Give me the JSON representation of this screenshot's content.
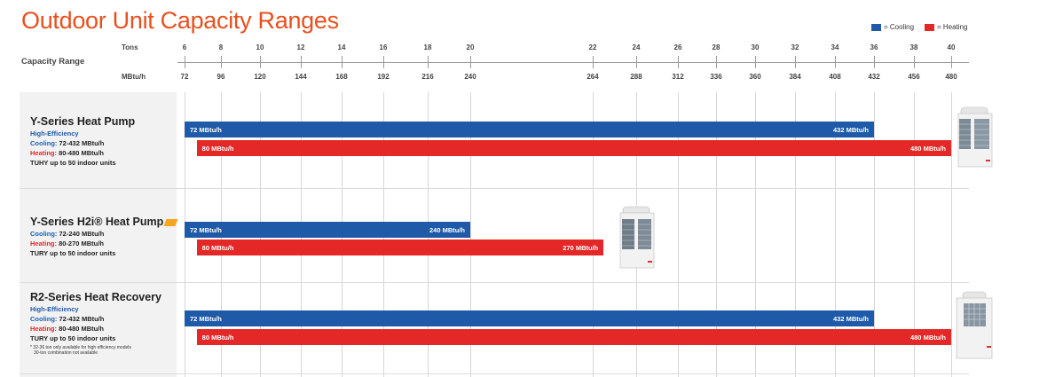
{
  "page": {
    "title": "Outdoor Unit Capacity Ranges"
  },
  "legend": {
    "cooling": {
      "label": "= Cooling",
      "color": "#1e5aa8"
    },
    "heating": {
      "label": "= Heating",
      "color": "#e42828"
    }
  },
  "capacity_range_label": "Capacity Range",
  "chart_data": {
    "type": "bar",
    "orientation": "horizontal-range",
    "tons_label": "Tons",
    "mbtuh_label": "MBtu/h",
    "axis_ticks": [
      {
        "tons": "6",
        "mbtuh": "72"
      },
      {
        "tons": "8",
        "mbtuh": "96"
      },
      {
        "tons": "10",
        "mbtuh": "120"
      },
      {
        "tons": "12",
        "mbtuh": "144"
      },
      {
        "tons": "14",
        "mbtuh": "168"
      },
      {
        "tons": "16",
        "mbtuh": "192"
      },
      {
        "tons": "18",
        "mbtuh": "216"
      },
      {
        "tons": "20",
        "mbtuh": "240"
      },
      {
        "tons": "22",
        "mbtuh": "264"
      },
      {
        "tons": "24",
        "mbtuh": "288"
      },
      {
        "tons": "26",
        "mbtuh": "312"
      },
      {
        "tons": "28",
        "mbtuh": "336"
      },
      {
        "tons": "30",
        "mbtuh": "360"
      },
      {
        "tons": "32",
        "mbtuh": "384"
      },
      {
        "tons": "34",
        "mbtuh": "408"
      },
      {
        "tons": "36",
        "mbtuh": "432"
      },
      {
        "tons": "38",
        "mbtuh": "456"
      },
      {
        "tons": "40",
        "mbtuh": "480"
      }
    ],
    "grid": true,
    "legend_position": "top-right",
    "series": [
      {
        "product": "Y-Series Heat Pump",
        "bars": [
          {
            "kind": "cooling",
            "min": 72,
            "max": 432,
            "min_label": "72 MBtu/h",
            "max_label": "432 MBtu/h"
          },
          {
            "kind": "heating",
            "min": 80,
            "max": 480,
            "min_label": "80 MBtu/h",
            "max_label": "480 MBtu/h"
          }
        ]
      },
      {
        "product": "Y-Series H2i® Heat Pump",
        "bars": [
          {
            "kind": "cooling",
            "min": 72,
            "max": 240,
            "min_label": "72 MBtu/h",
            "max_label": "240 MBtu/h"
          },
          {
            "kind": "heating",
            "min": 80,
            "max": 270,
            "min_label": "80 MBtu/h",
            "max_label": "270 MBtu/h"
          }
        ]
      },
      {
        "product": "R2-Series Heat Recovery",
        "bars": [
          {
            "kind": "cooling",
            "min": 72,
            "max": 432,
            "min_label": "72 MBtu/h",
            "max_label": "432 MBtu/h"
          },
          {
            "kind": "heating",
            "min": 80,
            "max": 480,
            "min_label": "80 MBtu/h",
            "max_label": "480 MBtu/h"
          }
        ]
      }
    ]
  },
  "rows": [
    {
      "title": "Y-Series Heat Pump",
      "subtitle": "High-Efficiency",
      "cooling_key": "Cooling:",
      "cooling_value": " 72-432 MBtu/h",
      "heating_key": "Heating:",
      "heating_value": " 80-480 MBtu/h",
      "indoor": "TUHY up to 50 indoor units"
    },
    {
      "title": "Y-Series H2i® Heat Pump",
      "cooling_key": "Cooling:",
      "cooling_value": " 72-240 MBtu/h",
      "heating_key": "Heating:",
      "heating_value": " 80-270 MBtu/h",
      "indoor": "TURY up to 50 indoor units"
    },
    {
      "title": "R2-Series Heat Recovery",
      "subtitle": "High-Efficiency",
      "cooling_key": "Cooling:",
      "cooling_value": " 72-432 MBtu/h",
      "heating_key": "Heating:",
      "heating_value": " 80-480 MBtu/h",
      "indoor": "TURY up to 50 indoor units",
      "note1": "* 32-36 ton only available for high efficiency models",
      "note2": "30-ton combination not available"
    }
  ]
}
